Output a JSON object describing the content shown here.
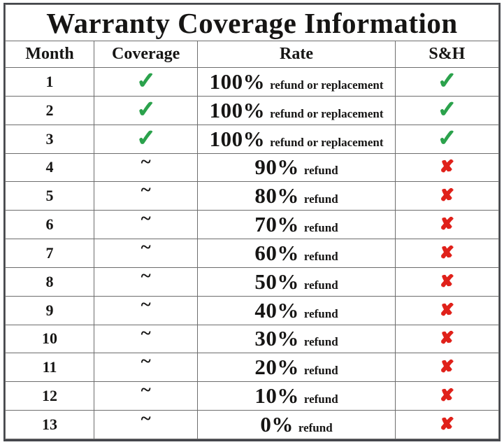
{
  "title": "Warranty Coverage Information",
  "header": {
    "month": "Month",
    "coverage": "Coverage",
    "rate": "Rate",
    "sh": "S&H"
  },
  "glyphs": {
    "check": "✓",
    "cross": "✘",
    "partial": "~"
  },
  "colors": {
    "check": "#2ba24c",
    "cross": "#e0211a",
    "border": "#6d6d6d",
    "frame": "#45474c",
    "text": "#161514",
    "bg": "#ffffff"
  },
  "rows": [
    {
      "month": "1",
      "coverage": "check",
      "rate": "100%",
      "rate_note": "refund or replacement",
      "sh": "check"
    },
    {
      "month": "2",
      "coverage": "check",
      "rate": "100%",
      "rate_note": "refund or replacement",
      "sh": "check"
    },
    {
      "month": "3",
      "coverage": "check",
      "rate": "100%",
      "rate_note": "refund or replacement",
      "sh": "check"
    },
    {
      "month": "4",
      "coverage": "partial",
      "rate": "90%",
      "rate_note": "refund",
      "sh": "cross"
    },
    {
      "month": "5",
      "coverage": "partial",
      "rate": "80%",
      "rate_note": "refund",
      "sh": "cross"
    },
    {
      "month": "6",
      "coverage": "partial",
      "rate": "70%",
      "rate_note": "refund",
      "sh": "cross"
    },
    {
      "month": "7",
      "coverage": "partial",
      "rate": "60%",
      "rate_note": "refund",
      "sh": "cross"
    },
    {
      "month": "8",
      "coverage": "partial",
      "rate": "50%",
      "rate_note": "refund",
      "sh": "cross"
    },
    {
      "month": "9",
      "coverage": "partial",
      "rate": "40%",
      "rate_note": "refund",
      "sh": "cross"
    },
    {
      "month": "10",
      "coverage": "partial",
      "rate": "30%",
      "rate_note": "refund",
      "sh": "cross"
    },
    {
      "month": "11",
      "coverage": "partial",
      "rate": "20%",
      "rate_note": "refund",
      "sh": "cross"
    },
    {
      "month": "12",
      "coverage": "partial",
      "rate": "10%",
      "rate_note": "refund",
      "sh": "cross"
    },
    {
      "month": "13",
      "coverage": "partial",
      "rate": "0%",
      "rate_note": "refund",
      "sh": "cross"
    }
  ]
}
